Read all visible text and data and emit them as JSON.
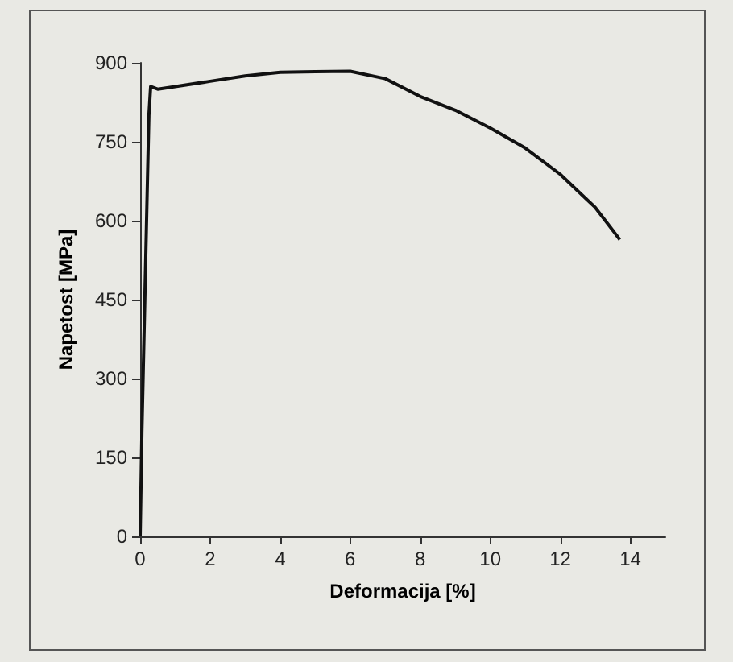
{
  "chart_data": {
    "type": "line",
    "xlabel": "Deformacija [%]",
    "ylabel": "Napetost [MPa]",
    "x": [
      0,
      0.05,
      0.15,
      0.25,
      0.3,
      0.5,
      1,
      2,
      3,
      4,
      5,
      6,
      7,
      8,
      9,
      10,
      11,
      12,
      13,
      13.7
    ],
    "series": [
      {
        "color": "#111111",
        "values": [
          0,
          200,
          500,
          800,
          855,
          850,
          855,
          865,
          875,
          882,
          883,
          884,
          870,
          836,
          810,
          776,
          738,
          688,
          625,
          564
        ]
      }
    ],
    "xlim": [
      0,
      15
    ],
    "xticks": [
      0,
      2,
      4,
      6,
      8,
      10,
      12,
      14
    ],
    "ylim": [
      0,
      900
    ],
    "yticks": [
      0,
      150,
      300,
      450,
      600,
      750,
      900
    ],
    "grid": false,
    "marker": "none",
    "line_style": "solid"
  }
}
